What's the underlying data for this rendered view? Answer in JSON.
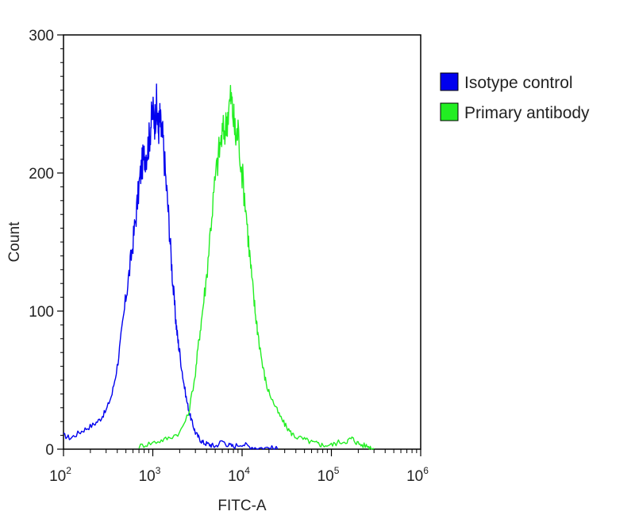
{
  "chart_data": {
    "type": "line",
    "title": "",
    "xlabel": "FITC-A",
    "ylabel": "Count",
    "xscale": "log",
    "xlim": [
      100,
      1000000
    ],
    "ylim": [
      0,
      300
    ],
    "x_ticks": [
      {
        "base": "10",
        "exp": "2",
        "value": 100
      },
      {
        "base": "10",
        "exp": "3",
        "value": 1000
      },
      {
        "base": "10",
        "exp": "4",
        "value": 10000
      },
      {
        "base": "10",
        "exp": "5",
        "value": 100000
      },
      {
        "base": "10",
        "exp": "6",
        "value": 1000000
      }
    ],
    "y_ticks": [
      "0",
      "100",
      "200",
      "300"
    ],
    "grid": false,
    "legend_position": "right",
    "series": [
      {
        "name": "Isotype control",
        "color": "#0000ee",
        "x": [
          100,
          120,
          150,
          180,
          220,
          260,
          300,
          350,
          400,
          450,
          500,
          550,
          600,
          650,
          700,
          750,
          800,
          850,
          900,
          950,
          1000,
          1050,
          1100,
          1150,
          1200,
          1250,
          1300,
          1400,
          1500,
          1600,
          1700,
          1800,
          1900,
          2000,
          2200,
          2400,
          2600,
          2800,
          3000,
          3300,
          3600,
          4000,
          4500,
          5000,
          6000,
          7000,
          8000,
          10000,
          12000,
          15000,
          20000,
          25000
        ],
        "y": [
          10,
          8,
          12,
          15,
          18,
          22,
          28,
          40,
          60,
          85,
          110,
          130,
          150,
          170,
          190,
          205,
          212,
          215,
          222,
          235,
          245,
          238,
          250,
          230,
          240,
          228,
          225,
          195,
          170,
          140,
          115,
          95,
          80,
          70,
          50,
          35,
          25,
          18,
          12,
          8,
          5,
          4,
          3,
          2,
          6,
          3,
          2,
          4,
          2,
          1,
          1,
          0
        ]
      },
      {
        "name": "Primary antibody",
        "color": "#22ee22",
        "x": [
          700,
          900,
          1200,
          1500,
          2000,
          2500,
          3000,
          3300,
          3600,
          4000,
          4500,
          5000,
          5500,
          6000,
          6500,
          7000,
          7500,
          8000,
          8500,
          9000,
          10000,
          11000,
          12000,
          13000,
          14000,
          15000,
          17000,
          19000,
          22000,
          26000,
          30000,
          35000,
          40000,
          50000,
          60000,
          70000,
          80000,
          100000,
          120000,
          150000,
          170000,
          190000,
          220000,
          260000,
          300000
        ],
        "y": [
          2,
          4,
          6,
          8,
          12,
          25,
          55,
          80,
          100,
          125,
          165,
          195,
          215,
          228,
          232,
          245,
          255,
          240,
          225,
          230,
          200,
          175,
          145,
          120,
          100,
          85,
          60,
          45,
          35,
          25,
          18,
          12,
          9,
          7,
          5,
          4,
          3,
          3,
          5,
          6,
          8,
          5,
          3,
          2,
          0
        ]
      }
    ]
  }
}
